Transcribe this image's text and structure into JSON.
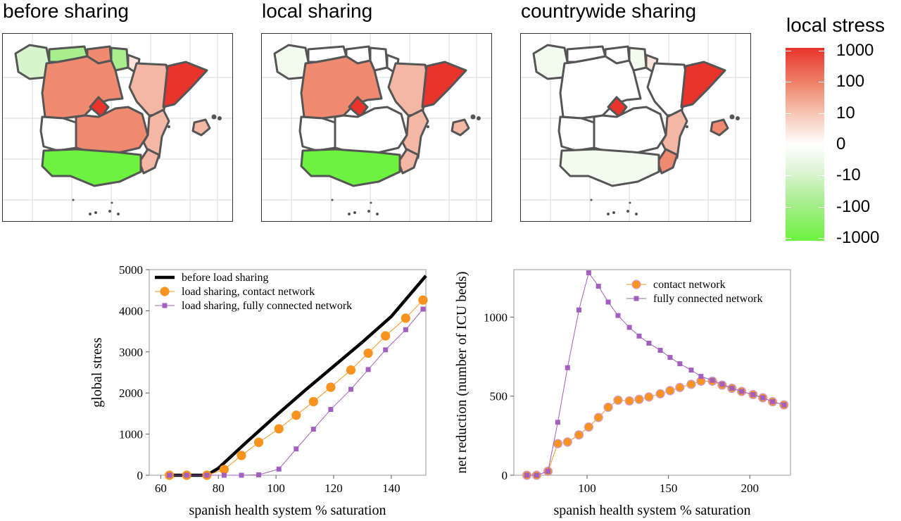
{
  "maps": [
    {
      "title": "before sharing"
    },
    {
      "title": "local sharing"
    },
    {
      "title": "countrywide sharing"
    }
  ],
  "legend": {
    "title": "local stress",
    "labels": [
      "1000",
      "100",
      "10",
      "0",
      "-10",
      "-100",
      "-1000"
    ],
    "colors": {
      "high": "#e8342b",
      "mid": "#ffffff",
      "low": "#6cf23f"
    }
  },
  "chart_data": [
    {
      "type": "line",
      "xlabel": "spanish health system % saturation",
      "ylabel": "global stress",
      "xlim": [
        56,
        152
      ],
      "ylim": [
        0,
        5000
      ],
      "xticks": [
        60,
        80,
        100,
        120,
        140
      ],
      "yticks": [
        0,
        1000,
        2000,
        3000,
        4000,
        5000
      ],
      "legend_position": "top-left",
      "series": [
        {
          "name": "before load sharing",
          "color": "#000000",
          "x": [
            63,
            70,
            76,
            80,
            90,
            100,
            110,
            120,
            130,
            140,
            152
          ],
          "values": [
            0,
            0,
            0,
            170,
            820,
            1450,
            2060,
            2650,
            3240,
            3860,
            4850
          ]
        },
        {
          "name": "load sharing, contact network",
          "color": "#f7931e",
          "x": [
            63,
            69,
            76,
            82,
            88,
            94,
            101,
            107,
            113,
            119,
            126,
            132,
            138,
            145,
            151
          ],
          "values": [
            0,
            0,
            0,
            140,
            480,
            800,
            1130,
            1460,
            1790,
            2140,
            2560,
            2970,
            3390,
            3820,
            4260
          ]
        },
        {
          "name": "load sharing, fully connected network",
          "color": "#a35fbf",
          "x": [
            63,
            69,
            76,
            82,
            88,
            94,
            101,
            107,
            113,
            119,
            126,
            132,
            138,
            145,
            151
          ],
          "values": [
            0,
            0,
            0,
            0,
            0,
            10,
            150,
            640,
            1120,
            1600,
            2090,
            2570,
            3050,
            3540,
            4040
          ]
        }
      ]
    },
    {
      "type": "line",
      "xlabel": "spanish health system % saturation",
      "ylabel": "net reduction (number of ICU beds)",
      "xlim": [
        55,
        225
      ],
      "ylim": [
        0,
        1300
      ],
      "xticks": [
        100,
        150,
        200
      ],
      "yticks": [
        0,
        500,
        1000
      ],
      "legend_position": "top-right",
      "series": [
        {
          "name": "contact network",
          "color": "#f7931e",
          "x": [
            63,
            69,
            76,
            82,
            88,
            95,
            101,
            107,
            113,
            119,
            126,
            132,
            138,
            145,
            151,
            157,
            164,
            170,
            177,
            183,
            189,
            195,
            202,
            208,
            214,
            221
          ],
          "values": [
            0,
            0,
            25,
            200,
            210,
            255,
            305,
            365,
            430,
            475,
            470,
            480,
            495,
            515,
            535,
            555,
            575,
            595,
            595,
            570,
            550,
            530,
            510,
            490,
            465,
            445
          ]
        },
        {
          "name": "fully connected network",
          "color": "#a35fbf",
          "x": [
            63,
            69,
            76,
            82,
            88,
            95,
            101,
            107,
            113,
            119,
            126,
            132,
            138,
            145,
            151,
            157,
            164,
            170,
            177,
            183,
            189,
            195,
            202,
            208,
            214,
            221
          ],
          "values": [
            0,
            0,
            25,
            335,
            680,
            1045,
            1280,
            1195,
            1095,
            1010,
            935,
            880,
            835,
            790,
            745,
            705,
            665,
            625,
            600,
            575,
            550,
            530,
            510,
            490,
            465,
            445
          ]
        }
      ]
    }
  ]
}
